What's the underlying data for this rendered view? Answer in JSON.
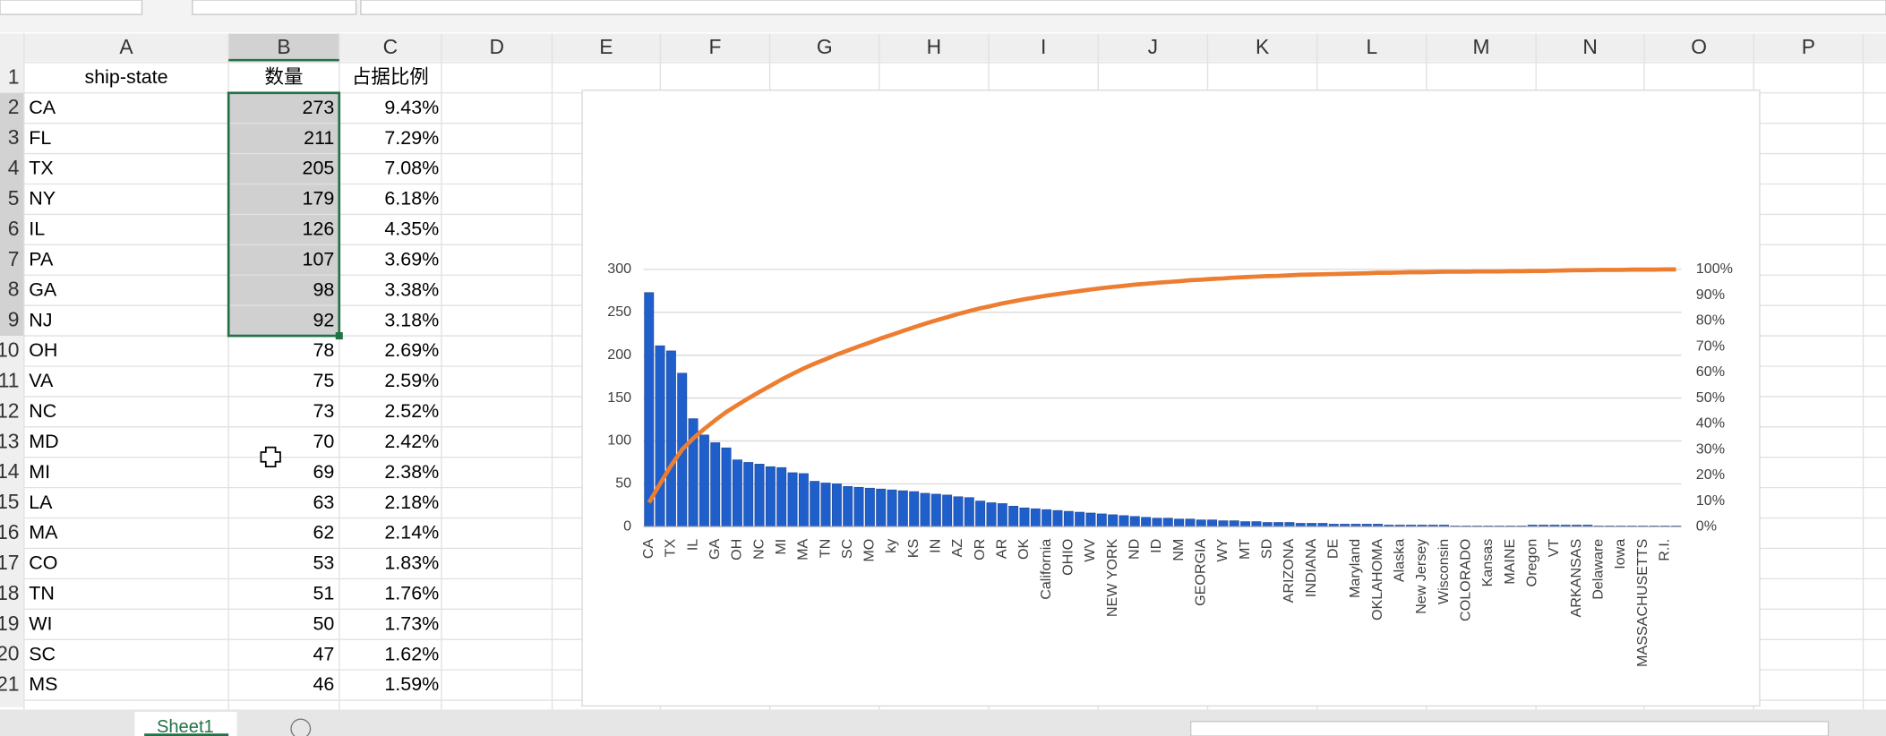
{
  "sheet": {
    "columns": [
      "A",
      "B",
      "C",
      "D",
      "E",
      "F",
      "G",
      "H",
      "I",
      "J",
      "K",
      "L",
      "M",
      "N",
      "O",
      "P"
    ],
    "row_numbers": [
      1,
      2,
      3,
      4,
      5,
      6,
      7,
      8,
      9,
      10,
      11,
      12,
      13,
      14,
      15,
      16,
      17,
      18,
      19,
      20,
      21
    ],
    "header": [
      "ship-state",
      "数量",
      "占据比例"
    ],
    "rows": [
      [
        "CA",
        273,
        "9.43%"
      ],
      [
        "FL",
        211,
        "7.29%"
      ],
      [
        "TX",
        205,
        "7.08%"
      ],
      [
        "NY",
        179,
        "6.18%"
      ],
      [
        "IL",
        126,
        "4.35%"
      ],
      [
        "PA",
        107,
        "3.69%"
      ],
      [
        "GA",
        98,
        "3.38%"
      ],
      [
        "NJ",
        92,
        "3.18%"
      ],
      [
        "OH",
        78,
        "2.69%"
      ],
      [
        "VA",
        75,
        "2.59%"
      ],
      [
        "NC",
        73,
        "2.52%"
      ],
      [
        "MD",
        70,
        "2.42%"
      ],
      [
        "MI",
        69,
        "2.38%"
      ],
      [
        "LA",
        63,
        "2.18%"
      ],
      [
        "MA",
        62,
        "2.14%"
      ],
      [
        "CO",
        53,
        "1.83%"
      ],
      [
        "TN",
        51,
        "1.76%"
      ],
      [
        "WI",
        50,
        "1.73%"
      ],
      [
        "SC",
        47,
        "1.62%"
      ],
      [
        "MS",
        46,
        "1.59%"
      ]
    ]
  },
  "tab": "Sheet1",
  "chart_data": {
    "type": "pareto",
    "categories": [
      "CA",
      null,
      "TX",
      null,
      "IL",
      null,
      "GA",
      null,
      "OH",
      null,
      "NC",
      null,
      "MI",
      null,
      "MA",
      null,
      "TN",
      null,
      "SC",
      null,
      "MO",
      null,
      "ky",
      null,
      "KS",
      null,
      "IN",
      null,
      "AZ",
      null,
      "OR",
      null,
      "AR",
      null,
      "OK",
      null,
      "California",
      null,
      "OHIO",
      null,
      "WV",
      null,
      "NEW YORK",
      null,
      "ND",
      null,
      "ID",
      null,
      "NM",
      null,
      "GEORGIA",
      null,
      "WY",
      null,
      "MT",
      null,
      "SD",
      null,
      "ARIZONA",
      null,
      "INDIANA",
      null,
      "DE",
      null,
      "Maryland",
      null,
      "OKLAHOMA",
      null,
      "Alaska",
      null,
      "New Jersey",
      null,
      "Wisconsin",
      null,
      "COLORADO",
      null,
      "Kansas",
      null,
      "MAINE",
      null,
      "Oregon",
      null,
      "VT",
      null,
      "ARKANSAS",
      null,
      "Delaware",
      null,
      "Iowa",
      null,
      "MASSACHUSETTS",
      null,
      "R.I.",
      null
    ],
    "series": [
      {
        "color": "#1f5fcc",
        "values": [
          273,
          211,
          205,
          179,
          126,
          107,
          98,
          92,
          78,
          75,
          73,
          70,
          69,
          63,
          62,
          53,
          51,
          50,
          47,
          46,
          45,
          44,
          43,
          42,
          41,
          39,
          38,
          37,
          35,
          34,
          30,
          28,
          27,
          24,
          22,
          21,
          20,
          19,
          18,
          17,
          16,
          15,
          14,
          13,
          12,
          11,
          10,
          10,
          9,
          9,
          8,
          8,
          7,
          7,
          6,
          6,
          5,
          5,
          5,
          4,
          4,
          4,
          3,
          3,
          3,
          3,
          3,
          2,
          2,
          2,
          2,
          2,
          2,
          1,
          1,
          1,
          1,
          1,
          1,
          1,
          2,
          2,
          2,
          2,
          2,
          2,
          1,
          1,
          1,
          1,
          1,
          1,
          1,
          1
        ]
      },
      {
        "color": "#ed7d31",
        "axis": "y2",
        "values": [
          9.4,
          16.7,
          23.8,
          30.0,
          34.3,
          38.0,
          41.4,
          44.6,
          47.3,
          49.9,
          52.4,
          54.8,
          57.2,
          59.4,
          61.5,
          63.4,
          65.1,
          66.9,
          68.5,
          70.1,
          71.6,
          73.2,
          74.6,
          76.1,
          77.5,
          78.9,
          80.2,
          81.4,
          82.7,
          83.8,
          84.9,
          85.8,
          86.8,
          87.6,
          88.4,
          89.1,
          89.8,
          90.4,
          91.0,
          91.6,
          92.2,
          92.7,
          93.2,
          93.6,
          94.1,
          94.4,
          94.8,
          95.1,
          95.4,
          95.8,
          96.0,
          96.3,
          96.5,
          96.8,
          97.0,
          97.2,
          97.4,
          97.5,
          97.7,
          97.9,
          98.0,
          98.1,
          98.2,
          98.3,
          98.4,
          98.5,
          98.7,
          98.7,
          98.8,
          98.9,
          98.9,
          99.0,
          99.1,
          99.1,
          99.1,
          99.2,
          99.2,
          99.2,
          99.3,
          99.3,
          99.4,
          99.4,
          99.5,
          99.6,
          99.7,
          99.7,
          99.8,
          99.8,
          99.8,
          99.9,
          99.9,
          99.9,
          100.0,
          100.0
        ]
      }
    ],
    "ylim": [
      0,
      300
    ],
    "yticks": [
      0,
      50,
      100,
      150,
      200,
      250,
      300
    ],
    "y2lim": [
      0,
      100
    ],
    "y2ticks": [
      {
        "value": 0,
        "label": "0%"
      },
      {
        "value": 10,
        "label": "10%"
      },
      {
        "value": 20,
        "label": "20%"
      },
      {
        "value": 30,
        "label": "30%"
      },
      {
        "value": 40,
        "label": "40%"
      },
      {
        "value": 50,
        "label": "50%"
      },
      {
        "value": 60,
        "label": "60%"
      },
      {
        "value": 70,
        "label": "70%"
      },
      {
        "value": 80,
        "label": "80%"
      },
      {
        "value": 90,
        "label": "90%"
      },
      {
        "value": 100,
        "label": "100%"
      }
    ],
    "grid": true
  }
}
